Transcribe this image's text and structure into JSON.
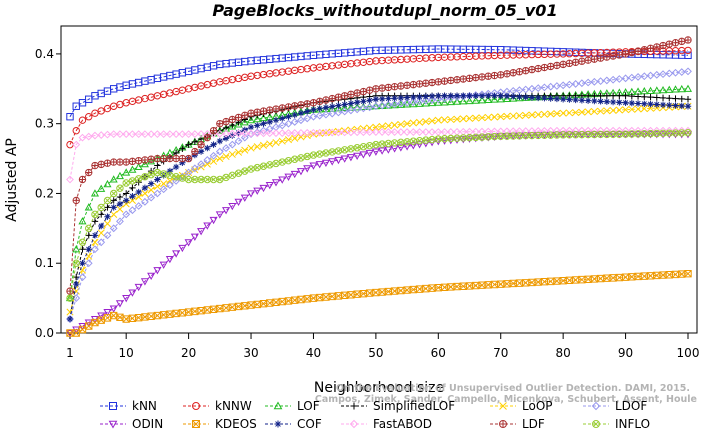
{
  "chart_data": {
    "type": "line",
    "title": "PageBlocks_withoutdupl_norm_05_v01",
    "xlabel": "Neighborhood size",
    "ylabel": "Adjusted AP",
    "xlim": [
      1,
      100
    ],
    "ylim": [
      0,
      0.44
    ],
    "x_ticks": [
      1,
      10,
      20,
      30,
      40,
      50,
      60,
      70,
      80,
      90,
      100
    ],
    "y_ticks": [
      0.0,
      0.1,
      0.2,
      0.3,
      0.4
    ],
    "y_tick_labels": [
      "0.0",
      "0.1",
      "0.2",
      "0.3",
      "0.4"
    ],
    "grid": false,
    "legend_position": "bottom",
    "watermark": [
      "Campos, Zimek, Sander, Campello, Micenkova, Schubert, Assent, Houle",
      "On the Evaluation of Unsupervised Outlier Detection. DAMI, 2015."
    ],
    "series": [
      {
        "name": "kNN",
        "color": "#2233dd",
        "marker": "square",
        "points": [
          [
            1,
            0.31
          ],
          [
            2,
            0.325
          ],
          [
            3,
            0.33
          ],
          [
            5,
            0.34
          ],
          [
            8,
            0.35
          ],
          [
            10,
            0.355
          ],
          [
            15,
            0.365
          ],
          [
            20,
            0.375
          ],
          [
            25,
            0.385
          ],
          [
            30,
            0.39
          ],
          [
            40,
            0.398
          ],
          [
            50,
            0.405
          ],
          [
            60,
            0.407
          ],
          [
            70,
            0.406
          ],
          [
            80,
            0.403
          ],
          [
            90,
            0.4
          ],
          [
            100,
            0.398
          ]
        ]
      },
      {
        "name": "kNNW",
        "color": "#dd2222",
        "marker": "circle",
        "points": [
          [
            1,
            0.27
          ],
          [
            2,
            0.29
          ],
          [
            3,
            0.305
          ],
          [
            5,
            0.315
          ],
          [
            8,
            0.325
          ],
          [
            10,
            0.33
          ],
          [
            15,
            0.34
          ],
          [
            20,
            0.35
          ],
          [
            25,
            0.36
          ],
          [
            30,
            0.368
          ],
          [
            40,
            0.38
          ],
          [
            50,
            0.39
          ],
          [
            60,
            0.395
          ],
          [
            70,
            0.398
          ],
          [
            80,
            0.4
          ],
          [
            90,
            0.403
          ],
          [
            100,
            0.405
          ]
        ]
      },
      {
        "name": "LOF",
        "color": "#22bb22",
        "marker": "triangle-up",
        "points": [
          [
            1,
            0.05
          ],
          [
            2,
            0.12
          ],
          [
            3,
            0.16
          ],
          [
            5,
            0.2
          ],
          [
            8,
            0.22
          ],
          [
            10,
            0.23
          ],
          [
            15,
            0.25
          ],
          [
            20,
            0.27
          ],
          [
            25,
            0.29
          ],
          [
            30,
            0.305
          ],
          [
            40,
            0.32
          ],
          [
            50,
            0.325
          ],
          [
            60,
            0.33
          ],
          [
            70,
            0.335
          ],
          [
            80,
            0.34
          ],
          [
            90,
            0.345
          ],
          [
            100,
            0.35
          ]
        ]
      },
      {
        "name": "SimplifiedLOF",
        "color": "#000000",
        "marker": "plus",
        "points": [
          [
            1,
            0.02
          ],
          [
            2,
            0.08
          ],
          [
            3,
            0.12
          ],
          [
            5,
            0.16
          ],
          [
            8,
            0.19
          ],
          [
            10,
            0.2
          ],
          [
            15,
            0.24
          ],
          [
            20,
            0.27
          ],
          [
            25,
            0.29
          ],
          [
            30,
            0.31
          ],
          [
            40,
            0.33
          ],
          [
            50,
            0.34
          ],
          [
            60,
            0.34
          ],
          [
            70,
            0.34
          ],
          [
            80,
            0.34
          ],
          [
            90,
            0.34
          ],
          [
            100,
            0.335
          ]
        ]
      },
      {
        "name": "LoOP",
        "color": "#ffd000",
        "marker": "x",
        "points": [
          [
            1,
            0.03
          ],
          [
            2,
            0.06
          ],
          [
            3,
            0.09
          ],
          [
            5,
            0.13
          ],
          [
            8,
            0.17
          ],
          [
            10,
            0.185
          ],
          [
            15,
            0.21
          ],
          [
            20,
            0.23
          ],
          [
            25,
            0.25
          ],
          [
            30,
            0.265
          ],
          [
            40,
            0.285
          ],
          [
            50,
            0.295
          ],
          [
            60,
            0.305
          ],
          [
            70,
            0.31
          ],
          [
            80,
            0.315
          ],
          [
            90,
            0.32
          ],
          [
            100,
            0.325
          ]
        ]
      },
      {
        "name": "LDOF",
        "color": "#9999ee",
        "marker": "diamond",
        "points": [
          [
            1,
            0.02
          ],
          [
            2,
            0.05
          ],
          [
            3,
            0.08
          ],
          [
            5,
            0.12
          ],
          [
            8,
            0.15
          ],
          [
            10,
            0.17
          ],
          [
            15,
            0.2
          ],
          [
            20,
            0.23
          ],
          [
            25,
            0.26
          ],
          [
            30,
            0.285
          ],
          [
            40,
            0.31
          ],
          [
            50,
            0.325
          ],
          [
            60,
            0.335
          ],
          [
            70,
            0.345
          ],
          [
            80,
            0.355
          ],
          [
            90,
            0.365
          ],
          [
            100,
            0.375
          ]
        ]
      },
      {
        "name": "ODIN",
        "color": "#9922cc",
        "marker": "triangle-down",
        "points": [
          [
            1,
            0.0
          ],
          [
            2,
            0.005
          ],
          [
            3,
            0.01
          ],
          [
            5,
            0.02
          ],
          [
            8,
            0.035
          ],
          [
            10,
            0.05
          ],
          [
            15,
            0.09
          ],
          [
            20,
            0.13
          ],
          [
            25,
            0.17
          ],
          [
            30,
            0.2
          ],
          [
            35,
            0.22
          ],
          [
            40,
            0.24
          ],
          [
            50,
            0.26
          ],
          [
            60,
            0.275
          ],
          [
            70,
            0.282
          ],
          [
            80,
            0.285
          ],
          [
            90,
            0.285
          ],
          [
            100,
            0.285
          ]
        ]
      },
      {
        "name": "KDEOS",
        "color": "#ee9900",
        "marker": "square-x",
        "points": [
          [
            1,
            0.0
          ],
          [
            2,
            0.0
          ],
          [
            3,
            0.005
          ],
          [
            5,
            0.015
          ],
          [
            8,
            0.025
          ],
          [
            10,
            0.02
          ],
          [
            15,
            0.025
          ],
          [
            20,
            0.03
          ],
          [
            25,
            0.035
          ],
          [
            30,
            0.04
          ],
          [
            40,
            0.05
          ],
          [
            50,
            0.058
          ],
          [
            60,
            0.065
          ],
          [
            70,
            0.07
          ],
          [
            80,
            0.075
          ],
          [
            90,
            0.08
          ],
          [
            100,
            0.085
          ]
        ]
      },
      {
        "name": "COF",
        "color": "#112288",
        "marker": "star",
        "points": [
          [
            1,
            0.02
          ],
          [
            2,
            0.07
          ],
          [
            3,
            0.1
          ],
          [
            5,
            0.14
          ],
          [
            8,
            0.18
          ],
          [
            10,
            0.19
          ],
          [
            15,
            0.22
          ],
          [
            20,
            0.25
          ],
          [
            25,
            0.275
          ],
          [
            30,
            0.295
          ],
          [
            40,
            0.32
          ],
          [
            50,
            0.335
          ],
          [
            60,
            0.34
          ],
          [
            70,
            0.34
          ],
          [
            80,
            0.335
          ],
          [
            90,
            0.33
          ],
          [
            100,
            0.325
          ]
        ]
      },
      {
        "name": "FastABOD",
        "color": "#ffaaee",
        "marker": "diamond",
        "points": [
          [
            1,
            0.22
          ],
          [
            2,
            0.27
          ],
          [
            3,
            0.28
          ],
          [
            5,
            0.283
          ],
          [
            8,
            0.285
          ],
          [
            10,
            0.285
          ],
          [
            15,
            0.285
          ],
          [
            20,
            0.285
          ],
          [
            30,
            0.286
          ],
          [
            40,
            0.287
          ],
          [
            50,
            0.288
          ],
          [
            60,
            0.288
          ],
          [
            70,
            0.289
          ],
          [
            80,
            0.29
          ],
          [
            90,
            0.29
          ],
          [
            100,
            0.29
          ]
        ]
      },
      {
        "name": "LDF",
        "color": "#aa3333",
        "marker": "circle-plus",
        "points": [
          [
            1,
            0.06
          ],
          [
            2,
            0.19
          ],
          [
            3,
            0.22
          ],
          [
            5,
            0.24
          ],
          [
            8,
            0.245
          ],
          [
            10,
            0.245
          ],
          [
            15,
            0.25
          ],
          [
            20,
            0.25
          ],
          [
            22,
            0.27
          ],
          [
            25,
            0.3
          ],
          [
            30,
            0.315
          ],
          [
            40,
            0.33
          ],
          [
            50,
            0.35
          ],
          [
            60,
            0.36
          ],
          [
            70,
            0.37
          ],
          [
            80,
            0.385
          ],
          [
            90,
            0.4
          ],
          [
            100,
            0.42
          ]
        ]
      },
      {
        "name": "INFLO",
        "color": "#99cc33",
        "marker": "circle-x",
        "points": [
          [
            1,
            0.05
          ],
          [
            2,
            0.1
          ],
          [
            3,
            0.13
          ],
          [
            5,
            0.17
          ],
          [
            8,
            0.2
          ],
          [
            10,
            0.215
          ],
          [
            15,
            0.23
          ],
          [
            20,
            0.22
          ],
          [
            25,
            0.22
          ],
          [
            30,
            0.235
          ],
          [
            40,
            0.255
          ],
          [
            50,
            0.27
          ],
          [
            60,
            0.278
          ],
          [
            70,
            0.282
          ],
          [
            80,
            0.284
          ],
          [
            90,
            0.285
          ],
          [
            100,
            0.287
          ]
        ]
      }
    ],
    "legend_order": [
      [
        "kNN",
        "kNNW",
        "LOF",
        "SimplifiedLOF",
        "LoOP",
        "LDOF"
      ],
      [
        "ODIN",
        "KDEOS",
        "COF",
        "FastABOD",
        "LDF",
        "INFLO"
      ]
    ]
  }
}
